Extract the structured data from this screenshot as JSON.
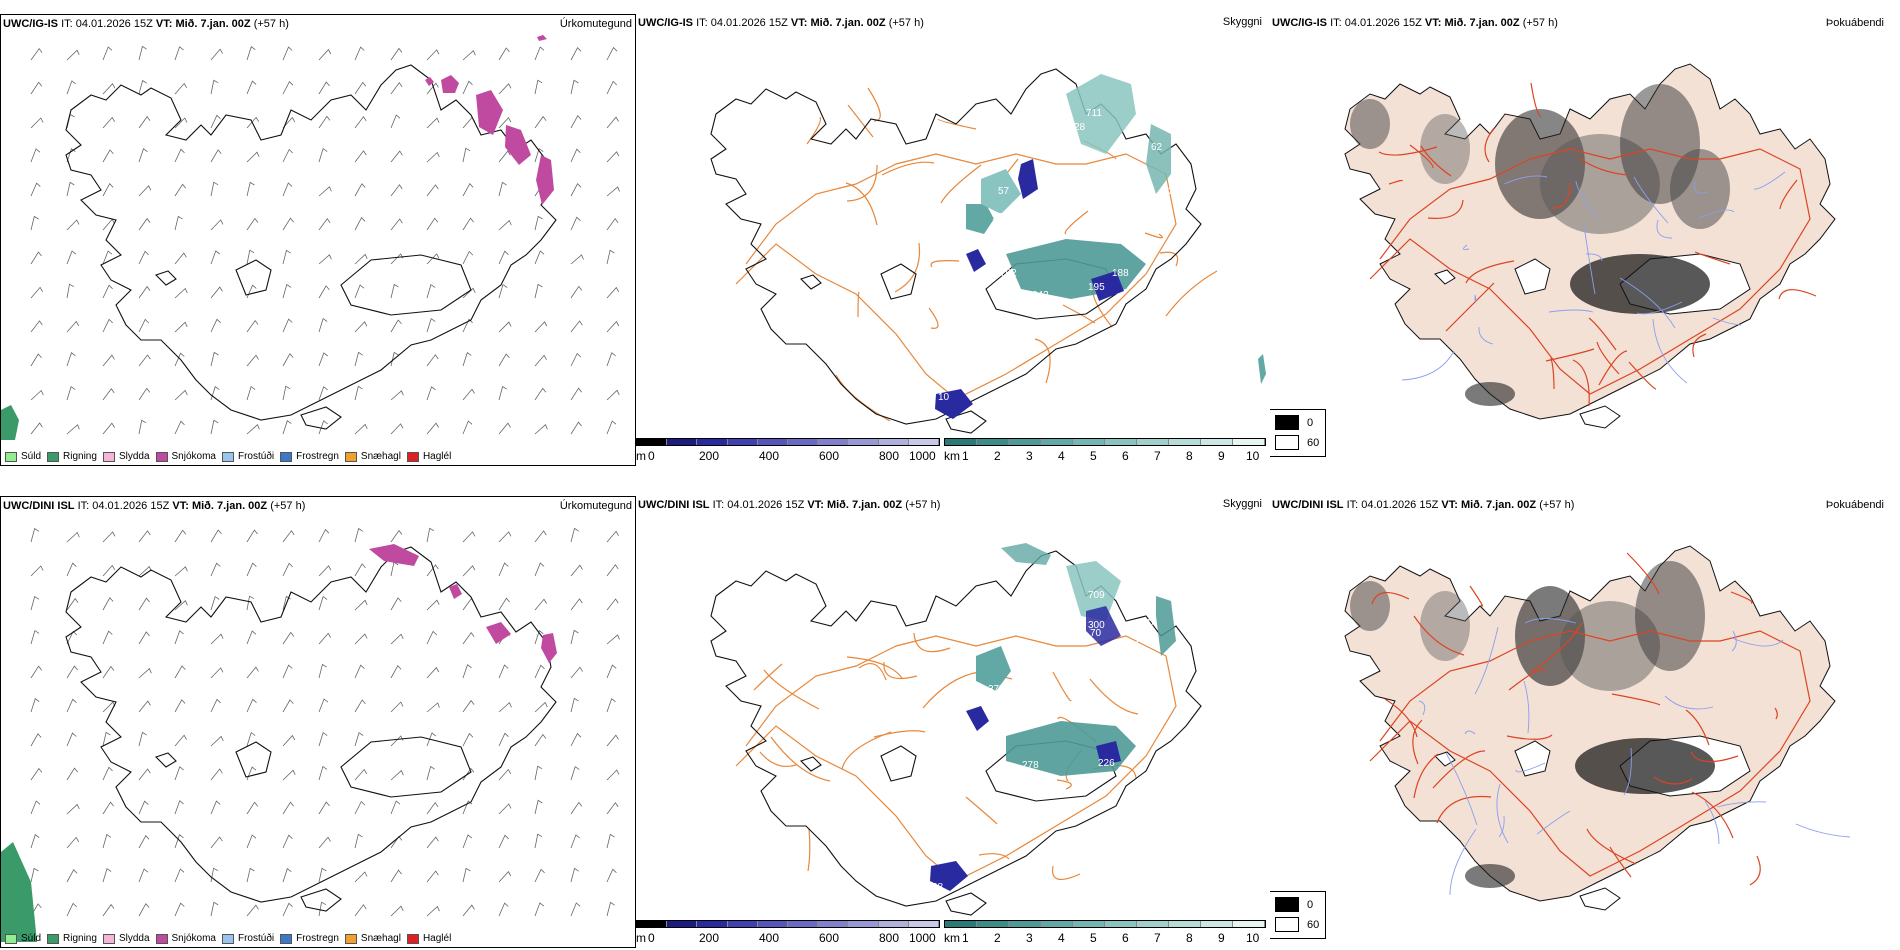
{
  "panels": [
    {
      "row": "top",
      "model": "UWC/IG-IS",
      "it_label": "IT:",
      "it": "04.01.2026 15Z",
      "vt_label": "VT:",
      "vt": "Mið. 7.jan. 00Z",
      "lead": "(+57 h)"
    },
    {
      "row": "bottom",
      "model": "UWC/DINI ISL",
      "it_label": "IT:",
      "it": "04.01.2026 15Z",
      "vt_label": "VT:",
      "vt": "Mið. 7.jan. 00Z",
      "lead": "(+57 h)"
    }
  ],
  "column_titles": {
    "precip": "Úrkomutegund",
    "visibility": "Skyggni",
    "fog": "Þokuábendi"
  },
  "precip_legend": [
    {
      "label": "Súld",
      "color": "#90ee90"
    },
    {
      "label": "Rigning",
      "color": "#3a9a6a"
    },
    {
      "label": "Slydda",
      "color": "#f4b6d8"
    },
    {
      "label": "Snjókoma",
      "color": "#c04aa0"
    },
    {
      "label": "Frostúði",
      "color": "#9ac4ec"
    },
    {
      "label": "Frostregn",
      "color": "#3a78c8"
    },
    {
      "label": "Snæhagl",
      "color": "#f0a030"
    },
    {
      "label": "Haglél",
      "color": "#e02020"
    }
  ],
  "visibility_scale_m": {
    "unit": "m",
    "ticks": [
      "0",
      "200",
      "400",
      "600",
      "800",
      "1000"
    ],
    "colors": [
      "#000000",
      "#1c1c80",
      "#2a2aa0",
      "#4040b0",
      "#5555bc",
      "#6a6ac4",
      "#8080cc",
      "#9898d4",
      "#b0b0dc",
      "#c8c8e8"
    ]
  },
  "visibility_scale_km": {
    "unit": "km",
    "ticks": [
      "1",
      "2",
      "3",
      "4",
      "5",
      "6",
      "7",
      "8",
      "9",
      "10"
    ],
    "colors": [
      "#2a7a78",
      "#3c8c88",
      "#4e9a96",
      "#62a8a4",
      "#76b6b2",
      "#8ac4c0",
      "#a0d0cc",
      "#b6dcd8",
      "#cce8e4",
      "#e6f4f2"
    ]
  },
  "fog_legend": [
    {
      "label": "0",
      "color": "#000000"
    },
    {
      "label": "60",
      "color": "#ffffff"
    }
  ],
  "vis_labels_top": [
    "711",
    "28",
    "62",
    "45",
    "330",
    "27",
    "57",
    "174",
    "146",
    "762",
    "188",
    "342",
    "195",
    "10",
    "11"
  ],
  "vis_labels_bottom": [
    "709",
    "300",
    "70",
    "94",
    "14",
    "377",
    "129",
    "996",
    "278",
    "296",
    "226",
    "38",
    "12"
  ],
  "colors": {
    "land_fog": "#f3e1d6",
    "roads_orange": "#e8873a",
    "roads_red": "#dd4422",
    "rivers": "#8a9ef0",
    "coast": "#000000",
    "snow": "#c04aa0",
    "rain": "#3a9a6a",
    "vis_teal": "#4e9a96",
    "vis_blue": "#2a2aa0"
  }
}
